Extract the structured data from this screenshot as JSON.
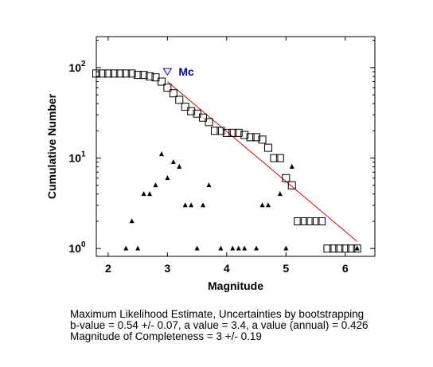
{
  "chart_data": {
    "type": "scatter",
    "xlabel": "Magnitude",
    "ylabel": "Cumulative Number",
    "x_ticks": [
      "2",
      "3",
      "4",
      "5",
      "6"
    ],
    "y_ticks": [
      {
        "base": "10",
        "exp": "0",
        "value": 1
      },
      {
        "base": "10",
        "exp": "1",
        "value": 10
      },
      {
        "base": "10",
        "exp": "2",
        "value": 100
      }
    ],
    "xlim": [
      1.8,
      6.5
    ],
    "ylim": [
      0.82,
      220
    ],
    "y_scale": "log",
    "series": [
      {
        "marker": "square",
        "x": [
          1.8,
          1.9,
          2.0,
          2.1,
          2.2,
          2.3,
          2.4,
          2.5,
          2.6,
          2.7,
          2.8,
          2.9,
          3.0,
          3.1,
          3.2,
          3.3,
          3.4,
          3.5,
          3.6,
          3.7,
          3.8,
          3.9,
          4.0,
          4.1,
          4.2,
          4.3,
          4.4,
          4.5,
          4.6,
          4.7,
          4.8,
          4.9,
          5.0,
          5.1,
          5.2,
          5.3,
          5.4,
          5.5,
          5.6,
          5.7,
          5.8,
          5.9,
          6.0,
          6.1,
          6.2
        ],
        "y": [
          86,
          86,
          86,
          86,
          86,
          86,
          86,
          83,
          83,
          80,
          78,
          70,
          60,
          52,
          44,
          37,
          33,
          31,
          28,
          25,
          20,
          20,
          19,
          19,
          19,
          18,
          17,
          17,
          16,
          13,
          10,
          10,
          6,
          5,
          2,
          2,
          2,
          2,
          2,
          1,
          1,
          1,
          1,
          1,
          1
        ]
      },
      {
        "marker": "triangle",
        "x": [
          2.3,
          2.4,
          2.5,
          2.6,
          2.7,
          2.8,
          2.9,
          3.0,
          3.1,
          3.2,
          3.3,
          3.4,
          3.5,
          3.6,
          3.7,
          3.9,
          4.1,
          4.2,
          4.3,
          4.5,
          4.6,
          4.7,
          4.9,
          5.0,
          5.1,
          6.2
        ],
        "y": [
          1,
          2,
          1,
          4,
          4,
          5,
          11,
          6,
          9,
          8,
          3,
          3,
          1,
          3,
          5,
          1,
          1,
          1,
          1,
          1,
          3,
          3,
          4,
          1,
          8,
          1
        ]
      }
    ],
    "fit_line": {
      "color": "#dd0000",
      "x": [
        3.0,
        6.2
      ],
      "y": [
        70,
        1.2
      ]
    },
    "mc": {
      "label": "Mc",
      "x": 3.0,
      "y": 90,
      "color": "#0000aa"
    }
  },
  "caption": {
    "line1": "Maximum Likelihood Estimate, Uncertainties by bootstrapping",
    "line2": "b-value = 0.54 +/- 0.07,  a value = 3.4,  a value (annual) = 0.426",
    "line3": "Magnitude of Completeness = 3 +/- 0.19"
  }
}
